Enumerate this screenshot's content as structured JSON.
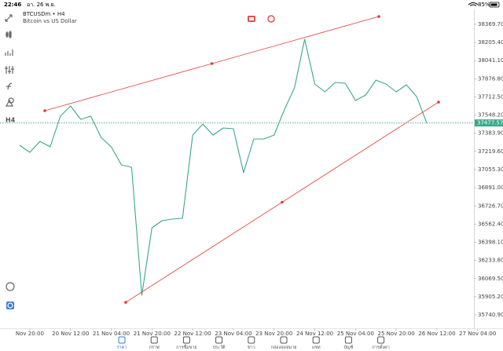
{
  "status_bar": {
    "time": "22:46",
    "date": "อา. 26 พ.ย.",
    "battery": "85%"
  },
  "chart_header": {
    "symbol": "BTCUSDm • H4",
    "description": "Bitcoin vs US Dollar"
  },
  "toolbar": {
    "timeframe": "H4"
  },
  "chart_data": {
    "type": "line",
    "x": [
      0,
      1,
      2,
      3,
      4,
      5,
      6,
      7,
      8,
      9,
      10,
      11,
      12,
      13,
      14,
      15,
      16,
      17,
      18,
      19,
      20,
      21,
      22,
      23,
      24,
      25,
      26,
      27,
      28,
      29,
      30,
      31,
      32,
      33,
      34,
      35,
      36,
      37,
      38,
      39,
      40
    ],
    "series": [
      {
        "name": "BTCUSDm",
        "color": "#3aa889",
        "values": [
          37275.5,
          37211.6,
          37311.1,
          37261.3,
          37538.4,
          37630.8,
          37510.0,
          37538.4,
          37346.6,
          37261.3,
          37097.9,
          37076.6,
          35918.5,
          36529.5,
          36593.4,
          36607.7,
          36614.8,
          37367.9,
          37467.4,
          37367.9,
          37431.8,
          37424.7,
          37026.9,
          37332.4,
          37332.4,
          37367.9,
          37595.3,
          37794.2,
          38234.7,
          37829.7,
          37758.7,
          37843.9,
          37836.8,
          37680.5,
          37730.2,
          37865.2,
          37829.7,
          37758.7,
          37822.6,
          37716.0,
          37477.57
        ]
      }
    ],
    "xlim": [
      -1.93,
      47.49
    ],
    "xticks": [
      {
        "value": 1,
        "label": "Nov 20:00"
      },
      {
        "value": 5,
        "label": "20 Nov 12:00"
      },
      {
        "value": 9,
        "label": "21 Nov 04:00"
      },
      {
        "value": 13,
        "label": "21 Nov 20:00"
      },
      {
        "value": 17,
        "label": "22 Nov 12:00"
      },
      {
        "value": 21,
        "label": "23 Nov 04:00"
      },
      {
        "value": 25,
        "label": "23 Nov 20:00"
      },
      {
        "value": 29,
        "label": "24 Nov 12:00"
      },
      {
        "value": 33,
        "label": "25 Nov 04:00"
      },
      {
        "value": 37,
        "label": "25 Nov 20:00"
      },
      {
        "value": 41,
        "label": "26 Nov 12:00"
      },
      {
        "value": 45,
        "label": "27 Nov 04:00"
      }
    ],
    "ylim": [
      35691.2,
      38554.4
    ],
    "yticks": [
      {
        "value": 38369.7,
        "label": "38369.70"
      },
      {
        "value": 38205.4,
        "label": "38205.40"
      },
      {
        "value": 38041.1,
        "label": "38041.10"
      },
      {
        "value": 37876.8,
        "label": "37876.80"
      },
      {
        "value": 37712.5,
        "label": "37712.50"
      },
      {
        "value": 37548.2,
        "label": "37548.20"
      },
      {
        "value": 37383.9,
        "label": "37383.90"
      },
      {
        "value": 37219.6,
        "label": "37219.60"
      },
      {
        "value": 37055.3,
        "label": "37055.30"
      },
      {
        "value": 36891,
        "label": "36891.00"
      },
      {
        "value": 36726.7,
        "label": "36726.70"
      },
      {
        "value": 36562.4,
        "label": "36562.40"
      },
      {
        "value": 36398.1,
        "label": "36398.10"
      },
      {
        "value": 36233.8,
        "label": "36233.80"
      },
      {
        "value": 36069.5,
        "label": "36069.50"
      },
      {
        "value": 35905.2,
        "label": "35905.20"
      },
      {
        "value": 35740.9,
        "label": "35740.90"
      }
    ],
    "last_price": {
      "value": 37477.57,
      "label": "37477.57",
      "color": "#3aa889"
    },
    "trendlines": [
      {
        "color": "#e53935",
        "x": [
          2.47,
          35.29
        ],
        "y": [
          37588.1,
          38440.7
        ]
      },
      {
        "color": "#e53935",
        "x": [
          10.42,
          41.16
        ],
        "y": [
          35854.5,
          37666.3
        ]
      }
    ],
    "grid": false
  },
  "tab_bar": {
    "active": 0,
    "items": [
      {
        "label": "ราคา"
      },
      {
        "label": "กราฟ"
      },
      {
        "label": "การซื้อขาย"
      },
      {
        "label": "ประวัติ"
      },
      {
        "label": "ข่าว"
      },
      {
        "label": "กล่องจดหมาย"
      },
      {
        "label": "แชท"
      },
      {
        "label": "บัญชี"
      },
      {
        "label": "การตั้งค่า"
      }
    ]
  }
}
